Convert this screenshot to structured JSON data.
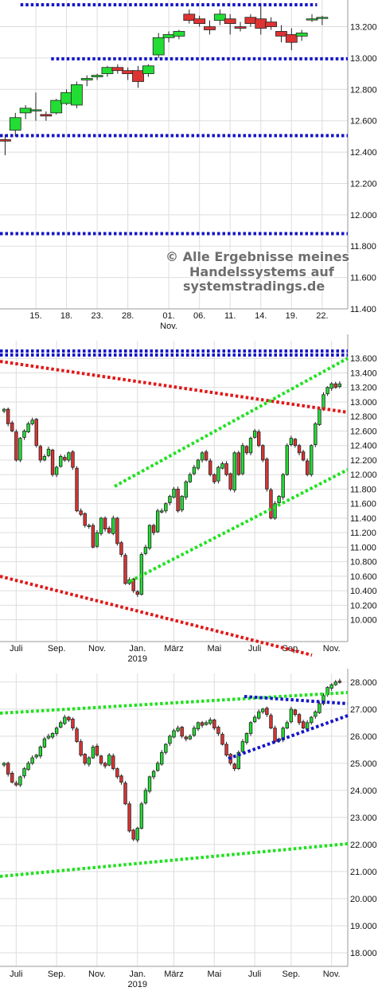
{
  "watermark": {
    "line1": "© Alle Ergebnisse meines",
    "line2": "Handelssystems auf",
    "line3": "systemstradings.de"
  },
  "colors": {
    "up": "#22dd33",
    "down": "#dd3333",
    "blue": "#1515c8",
    "red": "#e01818",
    "green": "#22e022"
  },
  "chart_data": [
    {
      "type": "candlestick",
      "title": "",
      "ylim": [
        11400,
        13350
      ],
      "yticks": [
        11400,
        11600,
        11800,
        12000,
        12200,
        12400,
        12600,
        12800,
        13000,
        13200
      ],
      "ytick_labels": [
        "11.400",
        "11.600",
        "11.800",
        "12.000",
        "12.200",
        "12.400",
        "12.600",
        "12.800",
        "13.000",
        "13.200"
      ],
      "x_labels": [
        {
          "i": 3,
          "label": "15."
        },
        {
          "i": 6,
          "label": "18."
        },
        {
          "i": 9,
          "label": "23."
        },
        {
          "i": 12,
          "label": "28."
        },
        {
          "i": 16,
          "label": "01.",
          "sub": "Nov."
        },
        {
          "i": 19,
          "label": "06."
        },
        {
          "i": 22,
          "label": "11."
        },
        {
          "i": 25,
          "label": "14."
        },
        {
          "i": 28,
          "label": "19."
        },
        {
          "i": 31,
          "label": "22."
        }
      ],
      "ohlc": [
        [
          12480,
          12510,
          12380,
          12470
        ],
        [
          12540,
          12650,
          12500,
          12620
        ],
        [
          12650,
          12700,
          12610,
          12680
        ],
        [
          12670,
          12780,
          12600,
          12670
        ],
        [
          12640,
          12660,
          12600,
          12630
        ],
        [
          12650,
          12740,
          12640,
          12730
        ],
        [
          12710,
          12800,
          12700,
          12780
        ],
        [
          12700,
          12850,
          12680,
          12830
        ],
        [
          12860,
          12890,
          12820,
          12870
        ],
        [
          12880,
          12900,
          12860,
          12890
        ],
        [
          12900,
          12950,
          12880,
          12940
        ],
        [
          12940,
          12960,
          12900,
          12920
        ],
        [
          12920,
          12940,
          12860,
          12900
        ],
        [
          12920,
          12950,
          12810,
          12850
        ],
        [
          12900,
          12960,
          12880,
          12950
        ],
        [
          13020,
          13160,
          13000,
          13130
        ],
        [
          13130,
          13170,
          13100,
          13150
        ],
        [
          13140,
          13180,
          13120,
          13170
        ],
        [
          13280,
          13310,
          13220,
          13240
        ],
        [
          13250,
          13270,
          13200,
          13220
        ],
        [
          13200,
          13240,
          13150,
          13180
        ],
        [
          13240,
          13310,
          13210,
          13280
        ],
        [
          13250,
          13280,
          13150,
          13220
        ],
        [
          13200,
          13230,
          13170,
          13190
        ],
        [
          13260,
          13280,
          13200,
          13220
        ],
        [
          13250,
          13350,
          13150,
          13190
        ],
        [
          13230,
          13260,
          13180,
          13200
        ],
        [
          13170,
          13210,
          13100,
          13140
        ],
        [
          13150,
          13190,
          13050,
          13100
        ],
        [
          13140,
          13180,
          13110,
          13160
        ],
        [
          13250,
          13280,
          13230,
          13250
        ],
        [
          13255,
          13270,
          13210,
          13260
        ]
      ],
      "lines": [
        {
          "color": "blue",
          "points": [
            [
              1.5,
              13340
            ],
            [
              30.5,
              13340
            ]
          ]
        },
        {
          "color": "blue",
          "points": [
            [
              4.5,
              12995
            ],
            [
              33.5,
              12995
            ]
          ]
        },
        {
          "color": "blue",
          "points": [
            [
              -0.5,
              12505
            ],
            [
              33.5,
              12505
            ]
          ]
        },
        {
          "color": "blue",
          "points": [
            [
              -0.5,
              11880
            ],
            [
              33.5,
              11880
            ]
          ]
        }
      ]
    },
    {
      "type": "candlestick",
      "title": "",
      "ylim": [
        9700,
        13800
      ],
      "yticks": [
        10000,
        10200,
        10400,
        10600,
        10800,
        11000,
        11200,
        11400,
        11600,
        11800,
        12000,
        12200,
        12400,
        12600,
        12800,
        13000,
        13200,
        13400,
        13600
      ],
      "ytick_labels": [
        "10.000",
        "10.200",
        "10.400",
        "10.600",
        "10.800",
        "11.000",
        "11.200",
        "11.400",
        "11.600",
        "11.800",
        "12.000",
        "12.200",
        "12.400",
        "12.600",
        "12.800",
        "13.000",
        "13.200",
        "13.400",
        "13.600"
      ],
      "x_labels": [
        {
          "i": 3,
          "label": "Juli"
        },
        {
          "i": 13,
          "label": "Sep."
        },
        {
          "i": 23,
          "label": "Nov."
        },
        {
          "i": 33,
          "label": "Jan.",
          "sub": "2019"
        },
        {
          "i": 42,
          "label": "März"
        },
        {
          "i": 52,
          "label": "Mai"
        },
        {
          "i": 62,
          "label": "Juli"
        },
        {
          "i": 71,
          "label": "Sep."
        },
        {
          "i": 81,
          "label": "Nov."
        }
      ],
      "closes": [
        12900,
        12700,
        12600,
        12200,
        12500,
        12600,
        12700,
        12750,
        12400,
        12200,
        12250,
        12350,
        12000,
        12100,
        12250,
        12200,
        12300,
        12100,
        11500,
        11450,
        11300,
        11300,
        11000,
        11200,
        11400,
        11250,
        11200,
        11400,
        11050,
        10900,
        10500,
        10550,
        10400,
        10350,
        10900,
        11000,
        11300,
        11200,
        11500,
        11500,
        11600,
        11700,
        11800,
        11500,
        11700,
        11900,
        12000,
        12100,
        12200,
        12300,
        12200,
        12000,
        11900,
        12100,
        12150,
        12000,
        11800,
        12300,
        12000,
        12400,
        12300,
        12500,
        12600,
        12400,
        12200,
        11800,
        11400,
        11600,
        11700,
        12000,
        12400,
        12500,
        12400,
        12300,
        12200,
        12000,
        12400,
        12700,
        12900,
        13100,
        13200,
        13250,
        13200,
        13250
      ]
    },
    {
      "type": "candlestick",
      "title": "",
      "ylim": [
        17500,
        28200
      ],
      "yticks": [
        18000,
        19000,
        20000,
        21000,
        22000,
        23000,
        24000,
        25000,
        26000,
        27000,
        28000
      ],
      "ytick_labels": [
        "18.000",
        "19.000",
        "20.000",
        "21.000",
        "22.000",
        "23.000",
        "24.000",
        "25.000",
        "26.000",
        "27.000",
        "28.000"
      ],
      "x_labels": [
        {
          "i": 3,
          "label": "Juli"
        },
        {
          "i": 13,
          "label": "Sep."
        },
        {
          "i": 23,
          "label": "Nov."
        },
        {
          "i": 33,
          "label": "Jan.",
          "sub": "2019"
        },
        {
          "i": 42,
          "label": "März"
        },
        {
          "i": 52,
          "label": "Mai"
        },
        {
          "i": 62,
          "label": "Juli"
        },
        {
          "i": 71,
          "label": "Sep."
        },
        {
          "i": 81,
          "label": "Nov."
        }
      ],
      "closes": [
        25000,
        24600,
        24300,
        24200,
        24500,
        24800,
        25000,
        25200,
        25300,
        25600,
        25900,
        26000,
        26100,
        26300,
        26500,
        26700,
        26600,
        26300,
        25800,
        25300,
        25000,
        25200,
        25600,
        25300,
        25000,
        24900,
        25300,
        24800,
        24500,
        24300,
        23500,
        22500,
        22200,
        22600,
        23500,
        24000,
        24500,
        24700,
        25000,
        25400,
        25700,
        26000,
        26200,
        26300,
        26000,
        25900,
        26000,
        26300,
        26500,
        26400,
        26500,
        26600,
        26300,
        26100,
        25700,
        25300,
        25000,
        24800,
        25400,
        25800,
        26100,
        26500,
        26700,
        26900,
        27000,
        26800,
        26300,
        25800,
        25900,
        26300,
        26500,
        27000,
        26800,
        26500,
        26300,
        26500,
        26700,
        26900,
        27200,
        27500,
        27800,
        27900,
        28000,
        28000
      ]
    }
  ]
}
